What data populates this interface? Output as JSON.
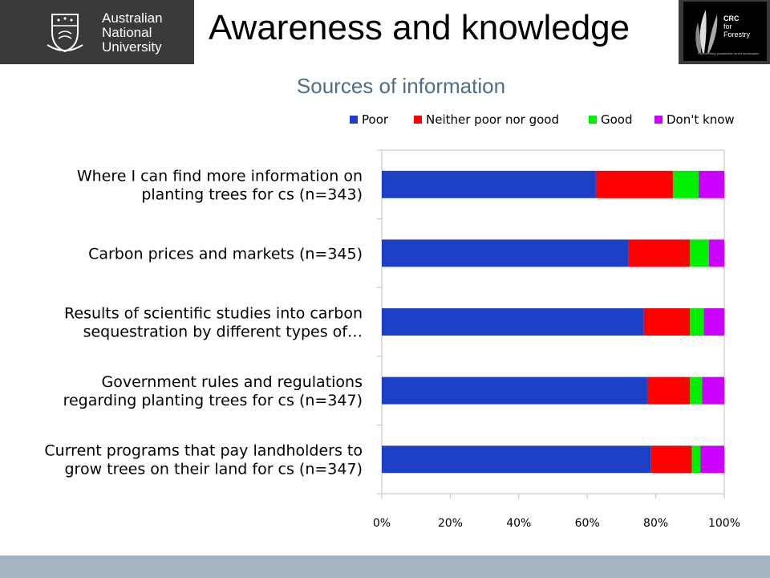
{
  "header": {
    "title": "Awareness and knowledge",
    "anu_logo": {
      "lines": [
        "Australian",
        "National",
        "University"
      ]
    },
    "crc_logo": {
      "lines": [
        "CRC",
        "for",
        "Forestry"
      ],
      "tagline": "Researching sustainable forest landscapes"
    }
  },
  "chart_data": {
    "type": "bar",
    "orientation": "horizontal",
    "stacked": "percent",
    "title": "Sources of information",
    "legend_position": "top-right",
    "categories": [
      [
        "Where I can find more information on",
        "planting trees for cs (n=343)"
      ],
      [
        "Carbon prices and markets (n=345)"
      ],
      [
        "Results of scientific studies into carbon",
        "sequestration by different types of…"
      ],
      [
        "Government rules and regulations",
        "regarding planting trees for cs (n=347)"
      ],
      [
        "Current programs that pay landholders to",
        "grow trees on their land for cs (n=347)"
      ]
    ],
    "series": [
      {
        "name": "Poor",
        "color": "#1c3fc8",
        "values": [
          62.5,
          72,
          76.5,
          77.5,
          78.5
        ]
      },
      {
        "name": "Neither poor nor good",
        "color": "#ff0000",
        "values": [
          22.5,
          18,
          13.5,
          12.5,
          12
        ]
      },
      {
        "name": "Good",
        "color": "#00ee00",
        "values": [
          7.5,
          5.5,
          4,
          3.5,
          2.5
        ]
      },
      {
        "name": "Don't know",
        "color": "#cc00ff",
        "values": [
          7.5,
          4.5,
          6,
          6.5,
          7
        ]
      }
    ],
    "xlim": [
      0,
      100
    ],
    "xticks": [
      "0%",
      "20%",
      "40%",
      "60%",
      "80%",
      "100%"
    ],
    "grid": false
  },
  "footer": {
    "color": "#a3b5c3"
  }
}
